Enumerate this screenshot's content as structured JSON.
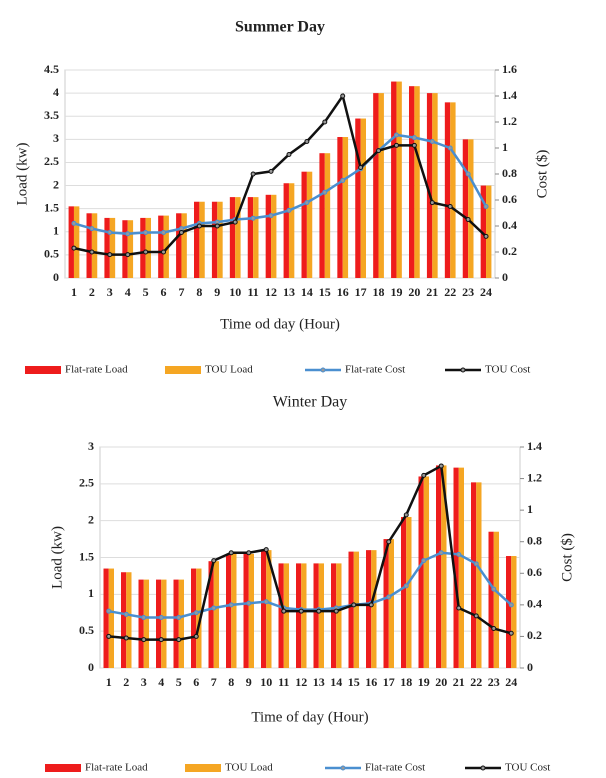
{
  "chart_data": [
    {
      "type": "bar",
      "title": "Summer Day",
      "x_label": "Time od day (Hour)",
      "y_label": "Load (kw)",
      "y2_label": "Cost ($)",
      "categories": [
        "1",
        "2",
        "3",
        "4",
        "5",
        "6",
        "7",
        "8",
        "9",
        "10",
        "11",
        "12",
        "13",
        "14",
        "15",
        "16",
        "17",
        "18",
        "19",
        "20",
        "21",
        "22",
        "23",
        "24"
      ],
      "ylim": [
        0,
        4.5
      ],
      "yticks": [
        0,
        0.5,
        1,
        1.5,
        2,
        2.5,
        3,
        3.5,
        4,
        4.5
      ],
      "y2lim": [
        0,
        1.6
      ],
      "y2ticks": [
        0,
        0.2,
        0.4,
        0.6,
        0.8,
        1,
        1.2,
        1.4,
        1.6
      ],
      "series": [
        {
          "name": "Flat-rate Load",
          "type": "bar",
          "color": "#ee1c1c",
          "values": [
            1.55,
            1.4,
            1.3,
            1.25,
            1.3,
            1.35,
            1.4,
            1.65,
            1.65,
            1.75,
            1.75,
            1.8,
            2.05,
            2.3,
            2.7,
            3.05,
            3.45,
            4.0,
            4.25,
            4.15,
            4.0,
            3.8,
            3.0,
            2.0
          ]
        },
        {
          "name": "TOU Load",
          "type": "bar",
          "color": "#f5a623",
          "values": [
            1.55,
            1.4,
            1.3,
            1.25,
            1.3,
            1.35,
            1.4,
            1.65,
            1.65,
            1.75,
            1.75,
            1.8,
            2.05,
            2.3,
            2.7,
            3.05,
            3.45,
            4.0,
            4.25,
            4.15,
            4.0,
            3.8,
            3.0,
            2.0
          ]
        },
        {
          "name": "Flat-rate Cost",
          "type": "line",
          "axis": "y2",
          "color": "#4a8fd0",
          "values": [
            0.42,
            0.38,
            0.35,
            0.34,
            0.35,
            0.35,
            0.38,
            0.42,
            0.43,
            0.45,
            0.46,
            0.48,
            0.52,
            0.58,
            0.66,
            0.75,
            0.84,
            0.98,
            1.1,
            1.08,
            1.05,
            1.0,
            0.8,
            0.55
          ]
        },
        {
          "name": "TOU Cost",
          "type": "line",
          "axis": "y2",
          "color": "#111111",
          "values": [
            0.23,
            0.2,
            0.18,
            0.18,
            0.2,
            0.2,
            0.35,
            0.4,
            0.4,
            0.43,
            0.8,
            0.82,
            0.95,
            1.05,
            1.2,
            1.4,
            0.85,
            0.98,
            1.02,
            1.02,
            0.58,
            0.55,
            0.45,
            0.32
          ]
        }
      ]
    },
    {
      "type": "bar",
      "title": "Winter Day",
      "x_label": "Time of day (Hour)",
      "y_label": "Load (kw)",
      "y2_label": "Cost ($)",
      "categories": [
        "1",
        "2",
        "3",
        "4",
        "5",
        "6",
        "7",
        "8",
        "9",
        "10",
        "11",
        "12",
        "13",
        "14",
        "15",
        "16",
        "17",
        "18",
        "19",
        "20",
        "21",
        "22",
        "23",
        "24"
      ],
      "ylim": [
        0,
        3
      ],
      "yticks": [
        0,
        0.5,
        1,
        1.5,
        2,
        2.5,
        3
      ],
      "y2lim": [
        0,
        1.4
      ],
      "y2ticks": [
        0,
        0.2,
        0.4,
        0.6,
        0.8,
        1,
        1.2,
        1.4
      ],
      "series": [
        {
          "name": "Flat-rate Load",
          "type": "bar",
          "color": "#ee1c1c",
          "values": [
            1.35,
            1.3,
            1.2,
            1.2,
            1.2,
            1.35,
            1.45,
            1.55,
            1.55,
            1.6,
            1.42,
            1.42,
            1.42,
            1.42,
            1.58,
            1.6,
            1.75,
            2.05,
            2.6,
            2.75,
            2.72,
            2.52,
            1.85,
            1.52
          ]
        },
        {
          "name": "TOU Load",
          "type": "bar",
          "color": "#f5a623",
          "values": [
            1.35,
            1.3,
            1.2,
            1.2,
            1.2,
            1.35,
            1.45,
            1.55,
            1.55,
            1.6,
            1.42,
            1.42,
            1.42,
            1.42,
            1.58,
            1.6,
            1.75,
            2.05,
            2.6,
            2.75,
            2.72,
            2.52,
            1.85,
            1.52
          ]
        },
        {
          "name": "Flat-rate Cost",
          "type": "line",
          "axis": "y2",
          "color": "#4a8fd0",
          "values": [
            0.36,
            0.34,
            0.32,
            0.32,
            0.32,
            0.35,
            0.38,
            0.4,
            0.41,
            0.42,
            0.38,
            0.37,
            0.37,
            0.38,
            0.4,
            0.41,
            0.45,
            0.52,
            0.68,
            0.73,
            0.72,
            0.66,
            0.5,
            0.4
          ]
        },
        {
          "name": "TOU Cost",
          "type": "line",
          "axis": "y2",
          "color": "#111111",
          "values": [
            0.2,
            0.19,
            0.18,
            0.18,
            0.18,
            0.2,
            0.68,
            0.73,
            0.73,
            0.75,
            0.36,
            0.36,
            0.36,
            0.36,
            0.4,
            0.4,
            0.8,
            0.97,
            1.22,
            1.28,
            0.38,
            0.33,
            0.25,
            0.22
          ]
        }
      ]
    }
  ]
}
